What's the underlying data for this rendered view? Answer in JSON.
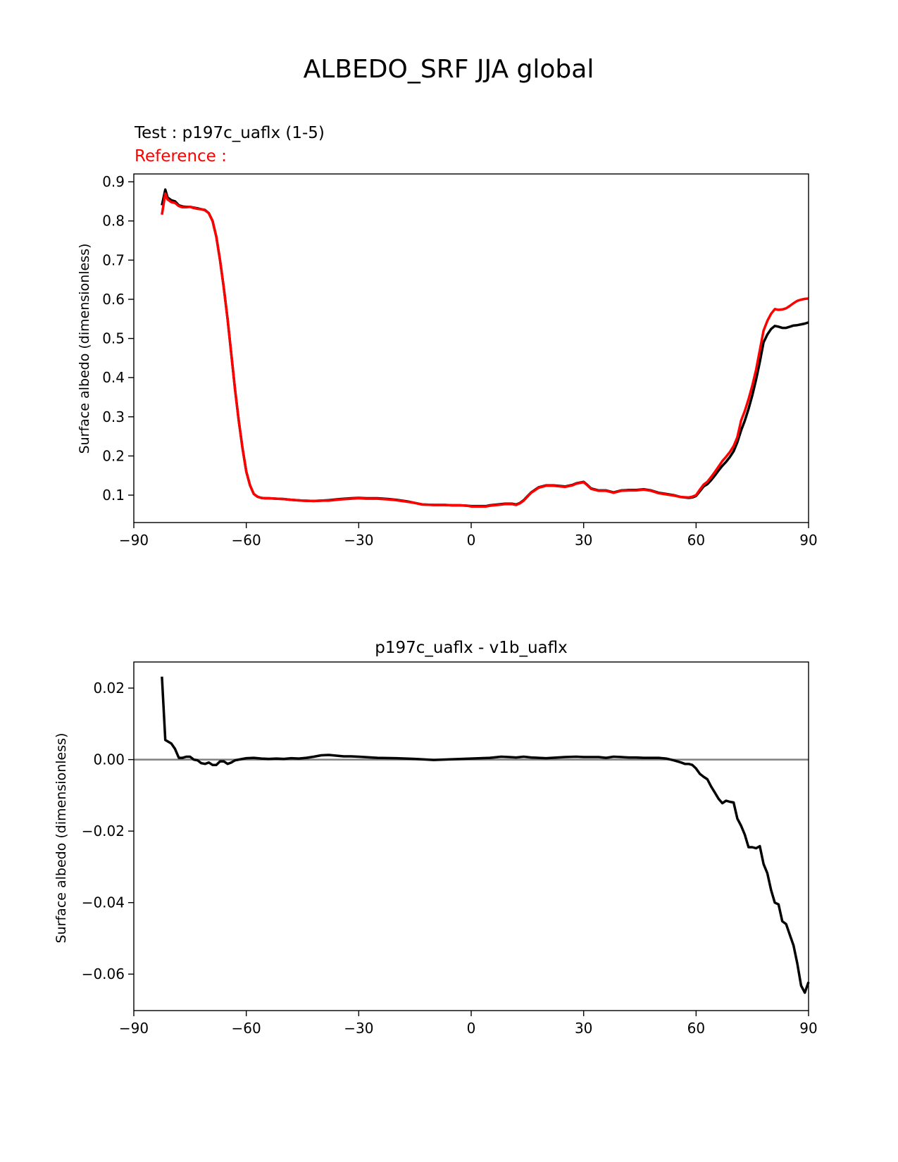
{
  "figure": {
    "title": "ALBEDO_SRF JJA global"
  },
  "colors": {
    "test": "#000000",
    "reference": "#ff0000",
    "zero_line": "#808080",
    "axes": "#000000"
  },
  "chart_data": [
    {
      "type": "line",
      "title": "",
      "annotations": {
        "test_label": "Test : p197c_uaflx (1-5)",
        "reference_label": "Reference :"
      },
      "xlabel": "",
      "ylabel": "Surface albedo (dimensionless)",
      "xlim": [
        -90,
        90
      ],
      "ylim": [
        0.03,
        0.92
      ],
      "xticks": [
        -90,
        -60,
        -30,
        0,
        30,
        60,
        90
      ],
      "xtick_labels": [
        "−90",
        "−60",
        "−30",
        "0",
        "30",
        "60",
        "90"
      ],
      "yticks": [
        0.1,
        0.2,
        0.3,
        0.4,
        0.5,
        0.6,
        0.7,
        0.8,
        0.9
      ],
      "ytick_labels": [
        "0.1",
        "0.2",
        "0.3",
        "0.4",
        "0.5",
        "0.6",
        "0.7",
        "0.8",
        "0.9"
      ],
      "grid": false,
      "series": [
        {
          "color": "#000000",
          "x": [
            -82.5,
            -81.6,
            -81,
            -80,
            -79,
            -78,
            -77,
            -76,
            -75,
            -74,
            -73,
            -72,
            -71,
            -70,
            -69,
            -68,
            -67,
            -66,
            -65,
            -64,
            -63,
            -62,
            -61,
            -60,
            -59,
            -58,
            -57,
            -56,
            -55,
            -54,
            -52,
            -50,
            -48,
            -45,
            -42,
            -40,
            -38,
            -35,
            -32,
            -30,
            -28,
            -25,
            -22,
            -20,
            -17,
            -15,
            -13,
            -10,
            -7,
            -5,
            -3,
            -1,
            0,
            2,
            4,
            5,
            7,
            9,
            11,
            12,
            13,
            14,
            15,
            16,
            18,
            20,
            22,
            25,
            27,
            28,
            30,
            31,
            32,
            34,
            36,
            38,
            40,
            42,
            44,
            46,
            48,
            50,
            52,
            54,
            56,
            58,
            59,
            60,
            61,
            62,
            63,
            64,
            65,
            66,
            67,
            68,
            69,
            70,
            71,
            72,
            73,
            74,
            75,
            76,
            77,
            78,
            79,
            80,
            81,
            82,
            83,
            84,
            85,
            86,
            87,
            88,
            89,
            90
          ],
          "values": [
            0.84,
            0.88,
            0.86,
            0.853,
            0.85,
            0.84,
            0.837,
            0.836,
            0.836,
            0.834,
            0.832,
            0.83,
            0.828,
            0.82,
            0.8,
            0.76,
            0.7,
            0.63,
            0.55,
            0.46,
            0.37,
            0.29,
            0.22,
            0.16,
            0.125,
            0.103,
            0.096,
            0.093,
            0.092,
            0.092,
            0.091,
            0.09,
            0.088,
            0.086,
            0.085,
            0.086,
            0.087,
            0.09,
            0.092,
            0.093,
            0.092,
            0.092,
            0.09,
            0.088,
            0.084,
            0.08,
            0.076,
            0.075,
            0.075,
            0.074,
            0.074,
            0.073,
            0.072,
            0.072,
            0.072,
            0.074,
            0.076,
            0.078,
            0.078,
            0.076,
            0.08,
            0.087,
            0.097,
            0.107,
            0.12,
            0.125,
            0.125,
            0.122,
            0.126,
            0.13,
            0.134,
            0.126,
            0.117,
            0.112,
            0.112,
            0.107,
            0.112,
            0.113,
            0.113,
            0.115,
            0.112,
            0.106,
            0.103,
            0.1,
            0.095,
            0.093,
            0.094,
            0.098,
            0.11,
            0.122,
            0.128,
            0.138,
            0.15,
            0.163,
            0.175,
            0.185,
            0.197,
            0.212,
            0.235,
            0.265,
            0.29,
            0.32,
            0.355,
            0.395,
            0.44,
            0.49,
            0.51,
            0.524,
            0.532,
            0.53,
            0.527,
            0.527,
            0.53,
            0.533,
            0.534,
            0.536,
            0.538,
            0.541
          ]
        },
        {
          "color": "#ff0000",
          "x": [
            -82.5,
            -81.6,
            -81,
            -80,
            -79,
            -78,
            -77,
            -76,
            -75,
            -74,
            -73,
            -72,
            -71,
            -70,
            -69,
            -68,
            -67,
            -66,
            -65,
            -64,
            -63,
            -62,
            -61,
            -60,
            -59,
            -58,
            -57,
            -56,
            -55,
            -54,
            -52,
            -50,
            -48,
            -45,
            -42,
            -40,
            -38,
            -35,
            -32,
            -30,
            -28,
            -25,
            -22,
            -20,
            -17,
            -15,
            -13,
            -10,
            -7,
            -5,
            -3,
            -1,
            0,
            2,
            4,
            5,
            7,
            9,
            11,
            12,
            13,
            14,
            15,
            16,
            18,
            20,
            22,
            25,
            27,
            28,
            30,
            31,
            32,
            34,
            36,
            38,
            40,
            42,
            44,
            46,
            48,
            50,
            52,
            54,
            56,
            58,
            59,
            60,
            61,
            62,
            63,
            64,
            65,
            66,
            67,
            68,
            69,
            70,
            71,
            72,
            73,
            74,
            75,
            76,
            77,
            78,
            79,
            80,
            81,
            82,
            83,
            84,
            85,
            86,
            87,
            88,
            89,
            90
          ],
          "values": [
            0.816,
            0.87,
            0.855,
            0.848,
            0.846,
            0.838,
            0.835,
            0.835,
            0.836,
            0.833,
            0.831,
            0.83,
            0.827,
            0.82,
            0.8,
            0.76,
            0.7,
            0.63,
            0.55,
            0.46,
            0.37,
            0.29,
            0.22,
            0.16,
            0.125,
            0.103,
            0.096,
            0.093,
            0.092,
            0.092,
            0.091,
            0.09,
            0.088,
            0.086,
            0.085,
            0.086,
            0.086,
            0.089,
            0.091,
            0.092,
            0.091,
            0.091,
            0.089,
            0.087,
            0.083,
            0.08,
            0.076,
            0.075,
            0.075,
            0.074,
            0.074,
            0.073,
            0.071,
            0.071,
            0.071,
            0.073,
            0.075,
            0.077,
            0.077,
            0.075,
            0.079,
            0.086,
            0.096,
            0.106,
            0.119,
            0.124,
            0.124,
            0.121,
            0.125,
            0.129,
            0.133,
            0.125,
            0.116,
            0.111,
            0.111,
            0.106,
            0.111,
            0.112,
            0.112,
            0.114,
            0.111,
            0.105,
            0.102,
            0.099,
            0.095,
            0.094,
            0.096,
            0.1,
            0.114,
            0.127,
            0.134,
            0.146,
            0.159,
            0.173,
            0.187,
            0.198,
            0.21,
            0.225,
            0.248,
            0.29,
            0.315,
            0.345,
            0.38,
            0.42,
            0.47,
            0.52,
            0.545,
            0.563,
            0.575,
            0.573,
            0.574,
            0.577,
            0.583,
            0.59,
            0.596,
            0.599,
            0.601,
            0.602
          ]
        }
      ]
    },
    {
      "type": "line",
      "title": "p197c_uaflx - v1b_uaflx",
      "xlabel": "",
      "ylabel": "Surface albedo (dimensionless)",
      "xlim": [
        -90,
        90
      ],
      "ylim": [
        -0.0702,
        0.0273
      ],
      "xticks": [
        -90,
        -60,
        -30,
        0,
        30,
        60,
        90
      ],
      "xtick_labels": [
        "−90",
        "−60",
        "−30",
        "0",
        "30",
        "60",
        "90"
      ],
      "yticks": [
        0.02,
        0.0,
        -0.02,
        -0.04,
        -0.06
      ],
      "ytick_labels": [
        "0.02",
        "0.00",
        "−0.02",
        "−0.04",
        "−0.06"
      ],
      "grid": false,
      "reference_line": 0.0,
      "series": [
        {
          "color": "#000000",
          "x": [
            -82.5,
            -81.6,
            -80,
            -79,
            -78,
            -77,
            -76,
            -75,
            -74,
            -73,
            -72,
            -71,
            -70,
            -69,
            -68,
            -67,
            -66,
            -65,
            -64,
            -63,
            -62,
            -61,
            -60,
            -58,
            -56,
            -54,
            -52,
            -50,
            -48,
            -46,
            -44,
            -42,
            -40,
            -38,
            -36,
            -34,
            -32,
            -30,
            -25,
            -20,
            -15,
            -10,
            -5,
            0,
            5,
            8,
            10,
            12,
            14,
            16,
            20,
            25,
            28,
            30,
            34,
            36,
            38,
            40,
            42,
            44,
            46,
            48,
            50,
            52,
            54,
            56,
            57,
            58,
            59,
            60,
            61,
            62,
            63,
            64,
            65,
            66,
            67,
            68,
            69,
            70,
            71,
            72,
            73,
            74,
            75,
            76,
            77,
            78,
            79,
            80,
            81,
            82,
            83,
            84,
            85,
            86,
            87,
            88,
            89,
            90
          ],
          "values": [
            0.0232,
            0.0055,
            0.0045,
            0.003,
            0.0005,
            0.0005,
            0.0008,
            0.0008,
            0.0,
            -0.0002,
            -0.001,
            -0.0012,
            -0.0008,
            -0.0015,
            -0.0015,
            -0.0005,
            -0.0005,
            -0.0012,
            -0.0008,
            -0.0002,
            0.0,
            0.0002,
            0.0004,
            0.0005,
            0.0003,
            0.0002,
            0.0003,
            0.0002,
            0.0004,
            0.0003,
            0.0005,
            0.0008,
            0.0012,
            0.0013,
            0.0011,
            0.0009,
            0.0009,
            0.0008,
            0.0005,
            0.0004,
            0.0002,
            -0.0001,
            0.0001,
            0.0003,
            0.0005,
            0.0008,
            0.0007,
            0.0006,
            0.0008,
            0.0006,
            0.0004,
            0.0007,
            0.0008,
            0.0007,
            0.0007,
            0.0005,
            0.0008,
            0.0007,
            0.0006,
            0.0006,
            0.0005,
            0.0005,
            0.0005,
            0.0003,
            -0.0002,
            -0.0008,
            -0.0012,
            -0.0012,
            -0.0015,
            -0.0025,
            -0.004,
            -0.0048,
            -0.0055,
            -0.0075,
            -0.0092,
            -0.011,
            -0.0122,
            -0.0115,
            -0.0118,
            -0.012,
            -0.0165,
            -0.0185,
            -0.021,
            -0.0245,
            -0.0245,
            -0.0248,
            -0.0242,
            -0.0292,
            -0.0318,
            -0.0365,
            -0.04,
            -0.0405,
            -0.0452,
            -0.046,
            -0.049,
            -0.052,
            -0.057,
            -0.0632,
            -0.0652,
            -0.0622
          ]
        }
      ]
    }
  ]
}
